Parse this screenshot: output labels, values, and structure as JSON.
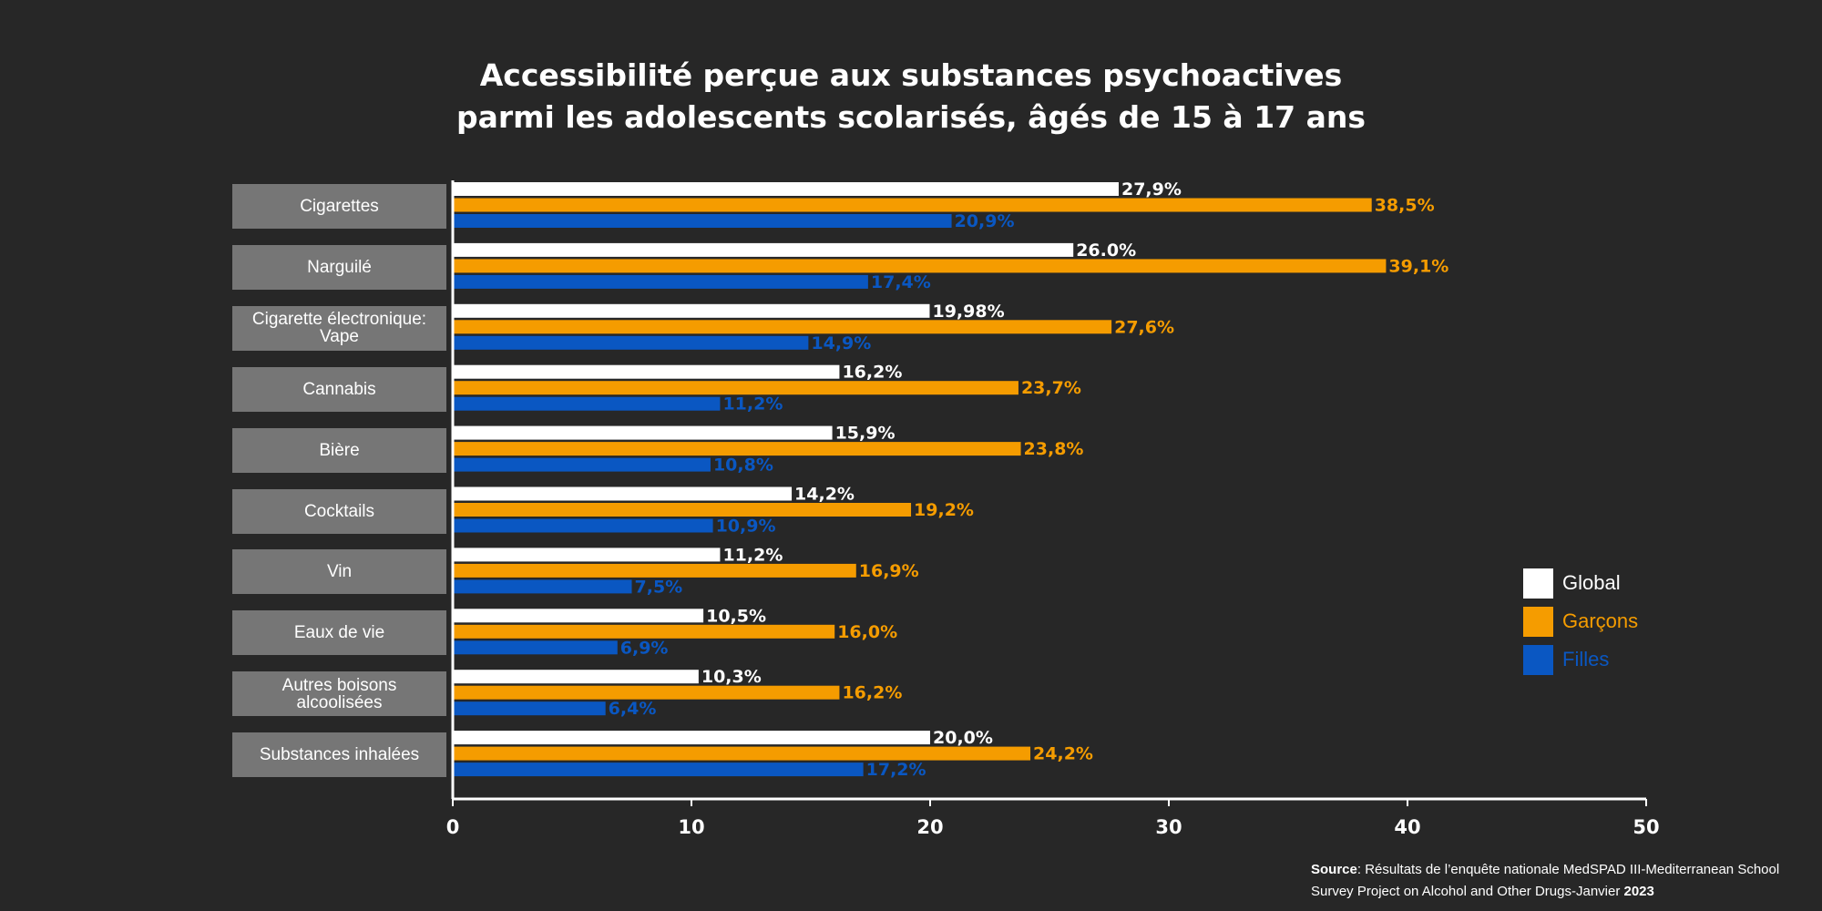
{
  "title": {
    "line1": "Accessibilité perçue aux substances psychoactives",
    "line2": "parmi les adolescents scolarisés, âgés de 15 à 17 ans"
  },
  "colors": {
    "global": "#ffffff",
    "garcons": "#f59c00",
    "filles": "#0a57c2",
    "background": "#272727",
    "category_box": "#767676"
  },
  "legend": [
    {
      "key": "global",
      "label": "Global",
      "color": "#ffffff"
    },
    {
      "key": "garcons",
      "label": "Garçons",
      "color": "#f59c00"
    },
    {
      "key": "filles",
      "label": "Filles",
      "color": "#0a57c2"
    }
  ],
  "source": {
    "label": "Source",
    "text": ": Résultats de l’enquête nationale MedSPAD III-Mediterranean School Survey Project on Alcohol and Other Drugs-Janvier ",
    "year": "2023"
  },
  "chart_data": {
    "type": "bar",
    "orientation": "horizontal",
    "title": "Accessibilité perçue aux substances psychoactives parmi les adolescents scolarisés, âgés de 15 à 17 ans",
    "xlim": [
      0,
      50
    ],
    "xticks": [
      0,
      10,
      20,
      30,
      40,
      50
    ],
    "categories": [
      "Cigarettes",
      "Narguilé",
      "Cigarette électronique: Vape",
      "Cannabis",
      "Bière",
      "Cocktails",
      "Vin",
      "Eaux de vie",
      "Autres boisons alcoolisées",
      "Substances inhalées"
    ],
    "series": [
      {
        "name": "Global",
        "key": "global",
        "values": [
          27.9,
          26.0,
          19.98,
          16.2,
          15.9,
          14.2,
          11.2,
          10.5,
          10.3,
          20.0
        ],
        "labels": [
          "27,9%",
          "26.0%",
          "19,98%",
          "16,2%",
          "15,9%",
          "14,2%",
          "11,2%",
          "10,5%",
          "10,3%",
          "20,0%"
        ]
      },
      {
        "name": "Garçons",
        "key": "garcons",
        "values": [
          38.5,
          39.1,
          27.6,
          23.7,
          23.8,
          19.2,
          16.9,
          16.0,
          16.2,
          24.2
        ],
        "labels": [
          "38,5%",
          "39,1%",
          "27,6%",
          "23,7%",
          "23,8%",
          "19,2%",
          "16,9%",
          "16,0%",
          "16,2%",
          "24,2%"
        ]
      },
      {
        "name": "Filles",
        "key": "filles",
        "values": [
          20.9,
          17.4,
          14.9,
          11.2,
          10.8,
          10.9,
          7.5,
          6.9,
          6.4,
          17.2
        ],
        "labels": [
          "20,9%",
          "17,4%",
          "14,9%",
          "11,2%",
          "10,8%",
          "10,9%",
          "7,5%",
          "6,9%",
          "6,4%",
          "17,2%"
        ]
      }
    ]
  }
}
